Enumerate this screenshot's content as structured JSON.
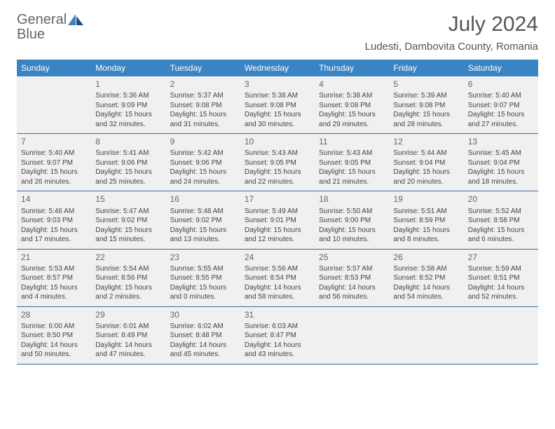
{
  "logo": {
    "word1": "General",
    "word2": "Blue"
  },
  "title": "July 2024",
  "location": "Ludesti, Dambovita County, Romania",
  "colors": {
    "header_bg": "#3b84c4",
    "header_text": "#ffffff",
    "cell_bg": "#f0f0f0",
    "border": "#3b6a9a",
    "logo_gray": "#666666",
    "logo_blue": "#3b84c4",
    "title_color": "#555555",
    "text_color": "#444444"
  },
  "weekdays": [
    "Sunday",
    "Monday",
    "Tuesday",
    "Wednesday",
    "Thursday",
    "Friday",
    "Saturday"
  ],
  "start_offset": 1,
  "days": [
    {
      "n": "1",
      "sunrise": "Sunrise: 5:36 AM",
      "sunset": "Sunset: 9:09 PM",
      "d1": "Daylight: 15 hours",
      "d2": "and 32 minutes."
    },
    {
      "n": "2",
      "sunrise": "Sunrise: 5:37 AM",
      "sunset": "Sunset: 9:08 PM",
      "d1": "Daylight: 15 hours",
      "d2": "and 31 minutes."
    },
    {
      "n": "3",
      "sunrise": "Sunrise: 5:38 AM",
      "sunset": "Sunset: 9:08 PM",
      "d1": "Daylight: 15 hours",
      "d2": "and 30 minutes."
    },
    {
      "n": "4",
      "sunrise": "Sunrise: 5:38 AM",
      "sunset": "Sunset: 9:08 PM",
      "d1": "Daylight: 15 hours",
      "d2": "and 29 minutes."
    },
    {
      "n": "5",
      "sunrise": "Sunrise: 5:39 AM",
      "sunset": "Sunset: 9:08 PM",
      "d1": "Daylight: 15 hours",
      "d2": "and 28 minutes."
    },
    {
      "n": "6",
      "sunrise": "Sunrise: 5:40 AM",
      "sunset": "Sunset: 9:07 PM",
      "d1": "Daylight: 15 hours",
      "d2": "and 27 minutes."
    },
    {
      "n": "7",
      "sunrise": "Sunrise: 5:40 AM",
      "sunset": "Sunset: 9:07 PM",
      "d1": "Daylight: 15 hours",
      "d2": "and 26 minutes."
    },
    {
      "n": "8",
      "sunrise": "Sunrise: 5:41 AM",
      "sunset": "Sunset: 9:06 PM",
      "d1": "Daylight: 15 hours",
      "d2": "and 25 minutes."
    },
    {
      "n": "9",
      "sunrise": "Sunrise: 5:42 AM",
      "sunset": "Sunset: 9:06 PM",
      "d1": "Daylight: 15 hours",
      "d2": "and 24 minutes."
    },
    {
      "n": "10",
      "sunrise": "Sunrise: 5:43 AM",
      "sunset": "Sunset: 9:05 PM",
      "d1": "Daylight: 15 hours",
      "d2": "and 22 minutes."
    },
    {
      "n": "11",
      "sunrise": "Sunrise: 5:43 AM",
      "sunset": "Sunset: 9:05 PM",
      "d1": "Daylight: 15 hours",
      "d2": "and 21 minutes."
    },
    {
      "n": "12",
      "sunrise": "Sunrise: 5:44 AM",
      "sunset": "Sunset: 9:04 PM",
      "d1": "Daylight: 15 hours",
      "d2": "and 20 minutes."
    },
    {
      "n": "13",
      "sunrise": "Sunrise: 5:45 AM",
      "sunset": "Sunset: 9:04 PM",
      "d1": "Daylight: 15 hours",
      "d2": "and 18 minutes."
    },
    {
      "n": "14",
      "sunrise": "Sunrise: 5:46 AM",
      "sunset": "Sunset: 9:03 PM",
      "d1": "Daylight: 15 hours",
      "d2": "and 17 minutes."
    },
    {
      "n": "15",
      "sunrise": "Sunrise: 5:47 AM",
      "sunset": "Sunset: 9:02 PM",
      "d1": "Daylight: 15 hours",
      "d2": "and 15 minutes."
    },
    {
      "n": "16",
      "sunrise": "Sunrise: 5:48 AM",
      "sunset": "Sunset: 9:02 PM",
      "d1": "Daylight: 15 hours",
      "d2": "and 13 minutes."
    },
    {
      "n": "17",
      "sunrise": "Sunrise: 5:49 AM",
      "sunset": "Sunset: 9:01 PM",
      "d1": "Daylight: 15 hours",
      "d2": "and 12 minutes."
    },
    {
      "n": "18",
      "sunrise": "Sunrise: 5:50 AM",
      "sunset": "Sunset: 9:00 PM",
      "d1": "Daylight: 15 hours",
      "d2": "and 10 minutes."
    },
    {
      "n": "19",
      "sunrise": "Sunrise: 5:51 AM",
      "sunset": "Sunset: 8:59 PM",
      "d1": "Daylight: 15 hours",
      "d2": "and 8 minutes."
    },
    {
      "n": "20",
      "sunrise": "Sunrise: 5:52 AM",
      "sunset": "Sunset: 8:58 PM",
      "d1": "Daylight: 15 hours",
      "d2": "and 6 minutes."
    },
    {
      "n": "21",
      "sunrise": "Sunrise: 5:53 AM",
      "sunset": "Sunset: 8:57 PM",
      "d1": "Daylight: 15 hours",
      "d2": "and 4 minutes."
    },
    {
      "n": "22",
      "sunrise": "Sunrise: 5:54 AM",
      "sunset": "Sunset: 8:56 PM",
      "d1": "Daylight: 15 hours",
      "d2": "and 2 minutes."
    },
    {
      "n": "23",
      "sunrise": "Sunrise: 5:55 AM",
      "sunset": "Sunset: 8:55 PM",
      "d1": "Daylight: 15 hours",
      "d2": "and 0 minutes."
    },
    {
      "n": "24",
      "sunrise": "Sunrise: 5:56 AM",
      "sunset": "Sunset: 8:54 PM",
      "d1": "Daylight: 14 hours",
      "d2": "and 58 minutes."
    },
    {
      "n": "25",
      "sunrise": "Sunrise: 5:57 AM",
      "sunset": "Sunset: 8:53 PM",
      "d1": "Daylight: 14 hours",
      "d2": "and 56 minutes."
    },
    {
      "n": "26",
      "sunrise": "Sunrise: 5:58 AM",
      "sunset": "Sunset: 8:52 PM",
      "d1": "Daylight: 14 hours",
      "d2": "and 54 minutes."
    },
    {
      "n": "27",
      "sunrise": "Sunrise: 5:59 AM",
      "sunset": "Sunset: 8:51 PM",
      "d1": "Daylight: 14 hours",
      "d2": "and 52 minutes."
    },
    {
      "n": "28",
      "sunrise": "Sunrise: 6:00 AM",
      "sunset": "Sunset: 8:50 PM",
      "d1": "Daylight: 14 hours",
      "d2": "and 50 minutes."
    },
    {
      "n": "29",
      "sunrise": "Sunrise: 6:01 AM",
      "sunset": "Sunset: 8:49 PM",
      "d1": "Daylight: 14 hours",
      "d2": "and 47 minutes."
    },
    {
      "n": "30",
      "sunrise": "Sunrise: 6:02 AM",
      "sunset": "Sunset: 8:48 PM",
      "d1": "Daylight: 14 hours",
      "d2": "and 45 minutes."
    },
    {
      "n": "31",
      "sunrise": "Sunrise: 6:03 AM",
      "sunset": "Sunset: 8:47 PM",
      "d1": "Daylight: 14 hours",
      "d2": "and 43 minutes."
    }
  ]
}
